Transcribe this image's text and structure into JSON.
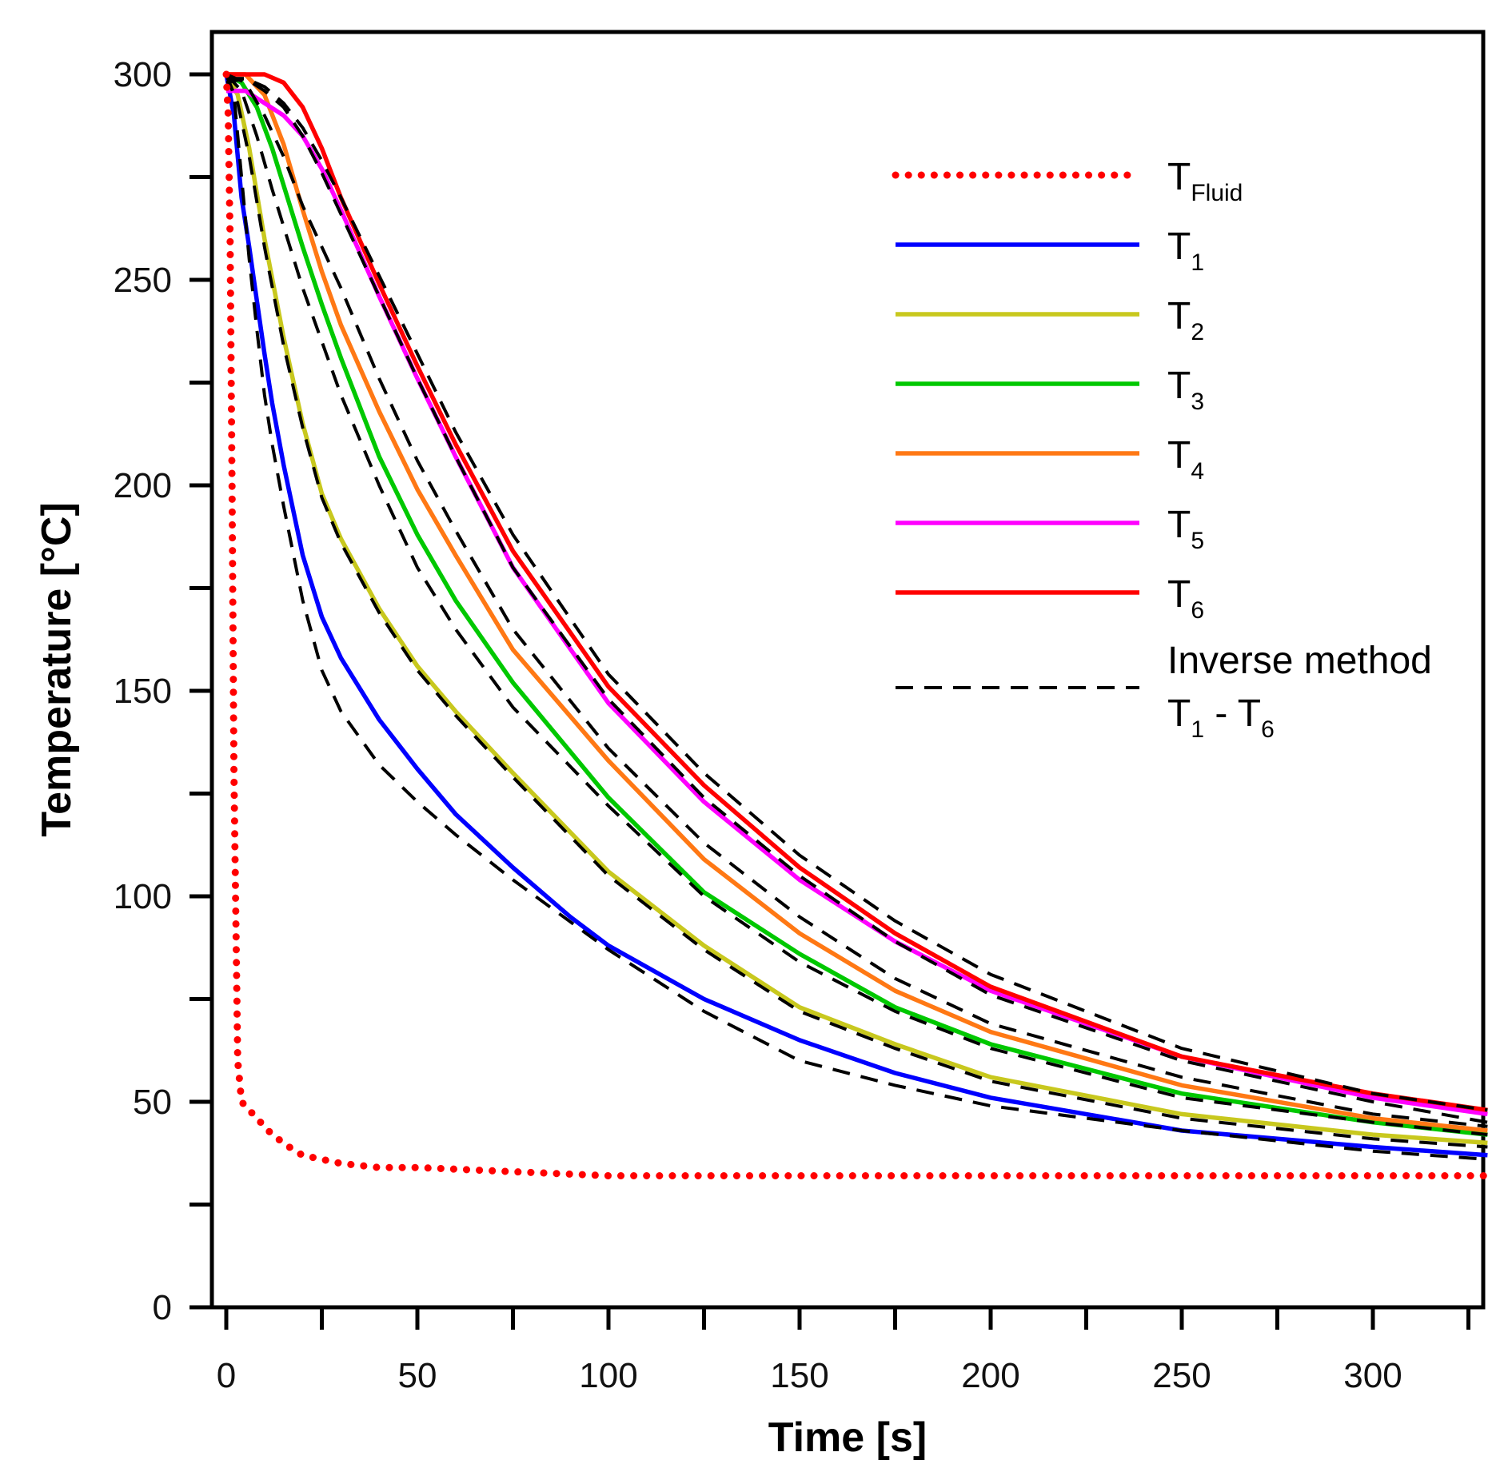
{
  "chart_data": {
    "type": "line",
    "title": "",
    "xlabel": "Time [s]",
    "ylabel": "Temperature [°C]",
    "xlim": [
      -4,
      330
    ],
    "ylim": [
      0,
      300
    ],
    "xticks": [
      0,
      50,
      100,
      150,
      200,
      250,
      300
    ],
    "xticks_minor": [
      25,
      75,
      125,
      175,
      225,
      275,
      325
    ],
    "yticks": [
      0,
      50,
      100,
      150,
      200,
      250,
      300
    ],
    "yticks_minor": [
      25,
      75,
      125,
      175,
      225,
      275
    ],
    "grid": false,
    "legend_position": "top-right",
    "legend_inverse_text_1": "Inverse method",
    "legend_inverse_text_2a": "T",
    "legend_inverse_sub_2a": "1",
    "legend_inverse_text_2b": " - T",
    "legend_inverse_sub_2b": "6",
    "series": [
      {
        "key": "tfluid",
        "name": "T",
        "sub": "Fluid",
        "color": "#ff0000",
        "style": "dotted",
        "x": [
          0,
          0.5,
          1,
          1.5,
          2,
          3,
          4,
          6,
          8,
          10,
          12,
          15,
          18,
          20,
          25,
          30,
          40,
          50,
          75,
          100,
          150,
          200,
          250,
          300,
          330
        ],
        "y": [
          300,
          290,
          260,
          200,
          130,
          60,
          50,
          48,
          46,
          44,
          42,
          40,
          38,
          37,
          36,
          35,
          34,
          34,
          33,
          32,
          32,
          32,
          32,
          32,
          32
        ]
      },
      {
        "key": "t1",
        "name": "T",
        "sub": "1",
        "color": "#0000ff",
        "style": "solid",
        "x": [
          0,
          2,
          4,
          6,
          8,
          10,
          12,
          15,
          20,
          25,
          30,
          40,
          50,
          60,
          75,
          90,
          100,
          125,
          150,
          175,
          200,
          250,
          300,
          330
        ],
        "y": [
          300,
          290,
          270,
          258,
          245,
          232,
          220,
          205,
          183,
          168,
          158,
          143,
          131,
          120,
          107,
          95,
          88,
          75,
          65,
          57,
          51,
          43,
          39,
          37
        ]
      },
      {
        "key": "t2",
        "name": "T",
        "sub": "2",
        "color": "#c8c81e",
        "style": "solid",
        "x": [
          0,
          3,
          6,
          10,
          15,
          20,
          25,
          30,
          40,
          50,
          60,
          75,
          100,
          125,
          150,
          175,
          200,
          250,
          300,
          330
        ],
        "y": [
          300,
          295,
          282,
          260,
          236,
          215,
          198,
          187,
          170,
          156,
          145,
          130,
          106,
          88,
          73,
          64,
          56,
          47,
          42,
          40
        ]
      },
      {
        "key": "t3",
        "name": "T",
        "sub": "3",
        "color": "#00c800",
        "style": "solid",
        "x": [
          0,
          4,
          8,
          12,
          16,
          20,
          25,
          30,
          40,
          50,
          60,
          75,
          100,
          125,
          150,
          175,
          200,
          250,
          300,
          330
        ],
        "y": [
          300,
          298,
          292,
          282,
          270,
          258,
          244,
          231,
          207,
          188,
          172,
          152,
          124,
          101,
          86,
          73,
          64,
          52,
          45,
          42
        ]
      },
      {
        "key": "t4",
        "name": "T",
        "sub": "4",
        "color": "#ff7814",
        "style": "solid",
        "x": [
          0,
          5,
          10,
          15,
          20,
          25,
          30,
          40,
          50,
          60,
          75,
          100,
          125,
          150,
          175,
          200,
          250,
          300,
          330
        ],
        "y": [
          300,
          300,
          295,
          283,
          267,
          252,
          239,
          218,
          199,
          183,
          160,
          133,
          109,
          91,
          77,
          67,
          54,
          46,
          43
        ]
      },
      {
        "key": "t5",
        "name": "T",
        "sub": "5",
        "color": "#ff00ff",
        "style": "solid",
        "x": [
          0,
          5,
          10,
          15,
          20,
          25,
          30,
          40,
          50,
          60,
          75,
          100,
          125,
          150,
          175,
          200,
          250,
          300,
          330
        ],
        "y": [
          296,
          296,
          293,
          290,
          285,
          277,
          267,
          246,
          226,
          207,
          180,
          147,
          123,
          104,
          89,
          77,
          61,
          51,
          47
        ]
      },
      {
        "key": "t6",
        "name": "T",
        "sub": "6",
        "color": "#ff0000",
        "style": "solid",
        "x": [
          0,
          5,
          10,
          15,
          20,
          25,
          30,
          40,
          50,
          60,
          75,
          100,
          125,
          150,
          175,
          200,
          250,
          300,
          330
        ],
        "y": [
          300,
          300,
          300,
          298,
          292,
          282,
          270,
          249,
          229,
          210,
          184,
          151,
          127,
          107,
          91,
          78,
          61,
          52,
          48
        ]
      },
      {
        "key": "inv1",
        "name": "Inverse T1",
        "color": "#000000",
        "style": "dashed",
        "x": [
          0,
          2,
          4,
          6,
          8,
          10,
          12,
          15,
          20,
          25,
          30,
          40,
          50,
          60,
          75,
          100,
          125,
          150,
          175,
          200,
          250,
          300,
          330
        ],
        "y": [
          300,
          295,
          275,
          255,
          238,
          222,
          210,
          195,
          172,
          155,
          145,
          132,
          123,
          115,
          104,
          87,
          72,
          60,
          54,
          49,
          43,
          38,
          36
        ]
      },
      {
        "key": "inv2",
        "name": "Inverse T2",
        "color": "#000000",
        "style": "dashed",
        "x": [
          0,
          3,
          6,
          10,
          15,
          20,
          25,
          30,
          40,
          50,
          60,
          75,
          100,
          125,
          150,
          175,
          200,
          250,
          300,
          330
        ],
        "y": [
          300,
          293,
          280,
          258,
          234,
          214,
          197,
          186,
          169,
          155,
          144,
          129,
          105,
          87,
          72,
          63,
          55,
          46,
          41,
          39
        ]
      },
      {
        "key": "inv3",
        "name": "Inverse T3",
        "color": "#000000",
        "style": "dashed",
        "x": [
          0,
          4,
          8,
          12,
          16,
          20,
          25,
          30,
          40,
          50,
          60,
          75,
          100,
          125,
          150,
          175,
          200,
          250,
          300,
          330
        ],
        "y": [
          300,
          296,
          285,
          272,
          260,
          248,
          235,
          222,
          200,
          180,
          165,
          146,
          122,
          100,
          84,
          72,
          63,
          51,
          45,
          42
        ]
      },
      {
        "key": "inv4",
        "name": "Inverse T4",
        "color": "#000000",
        "style": "dashed",
        "x": [
          0,
          5,
          10,
          15,
          20,
          25,
          30,
          40,
          50,
          60,
          75,
          100,
          125,
          150,
          175,
          200,
          250,
          300,
          330
        ],
        "y": [
          300,
          298,
          290,
          280,
          268,
          258,
          248,
          226,
          206,
          189,
          165,
          136,
          113,
          95,
          80,
          69,
          56,
          47,
          44
        ]
      },
      {
        "key": "inv5",
        "name": "Inverse T5",
        "color": "#000000",
        "style": "dashed",
        "x": [
          0,
          5,
          10,
          15,
          20,
          25,
          30,
          40,
          50,
          60,
          75,
          100,
          125,
          150,
          175,
          200,
          250,
          300,
          330
        ],
        "y": [
          298,
          299,
          296,
          292,
          285,
          276,
          266,
          246,
          226,
          207,
          180,
          148,
          124,
          105,
          89,
          76,
          60,
          50,
          45
        ]
      },
      {
        "key": "inv6",
        "name": "Inverse T6",
        "color": "#000000",
        "style": "dashed",
        "x": [
          0,
          5,
          10,
          15,
          20,
          25,
          30,
          40,
          50,
          60,
          75,
          100,
          125,
          150,
          175,
          200,
          250,
          300,
          330
        ],
        "y": [
          299,
          299,
          297,
          293,
          287,
          279,
          270,
          251,
          232,
          213,
          188,
          154,
          130,
          110,
          94,
          81,
          63,
          52,
          48
        ]
      }
    ]
  }
}
